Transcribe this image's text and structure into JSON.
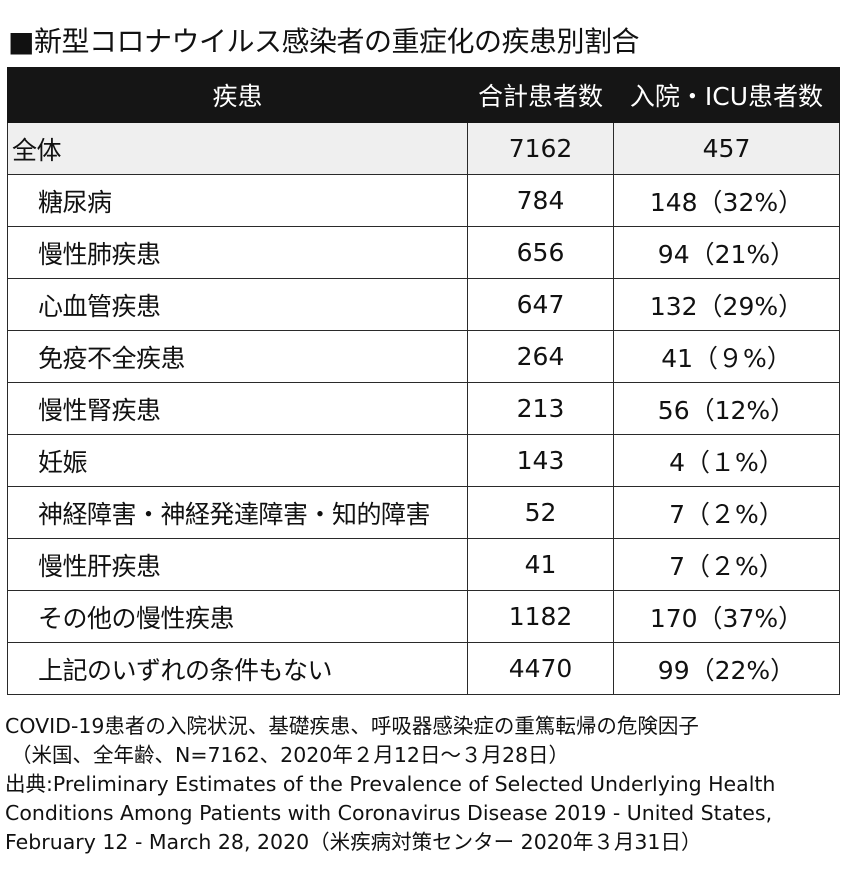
{
  "title": "■新型コロナウイルス感染者の重症化の疾患別割合",
  "table": {
    "headers": [
      "疾患",
      "合計患者数",
      "入院・ICU患者数"
    ],
    "total": {
      "name": "全体",
      "count": "7162",
      "icu": "457"
    },
    "rows": [
      {
        "name": "糖尿病",
        "count": "784",
        "icu": "148（32%）"
      },
      {
        "name": "慢性肺疾患",
        "count": "656",
        "icu": "94（21%）"
      },
      {
        "name": "心血管疾患",
        "count": "647",
        "icu": "132（29%）"
      },
      {
        "name": "免疫不全疾患",
        "count": "264",
        "icu": "41（９%）"
      },
      {
        "name": "慢性腎疾患",
        "count": "213",
        "icu": "56（12%）"
      },
      {
        "name": "妊娠",
        "count": "143",
        "icu": "4（１%）"
      },
      {
        "name": "神経障害・神経発達障害・知的障害",
        "count": "52",
        "icu": "7（２%）"
      },
      {
        "name": "慢性肝疾患",
        "count": "41",
        "icu": "7（２%）"
      },
      {
        "name": "その他の慢性疾患",
        "count": "1182",
        "icu": "170（37%）"
      },
      {
        "name": "上記のいずれの条件もない",
        "count": "4470",
        "icu": "99（22%）"
      }
    ]
  },
  "notes": {
    "caption": "COVID-19患者の入院状況、基礎疾患、呼吸器感染症の重篤転帰の危険因子",
    "scope": "（米国、全年齢、N=7162、2020年２月12日〜３月28日）",
    "source_line1": "出典:Preliminary Estimates of the Prevalence of Selected Underlying Health",
    "source_line2": "Conditions Among Patients with Coronavirus Disease 2019 - United States,",
    "source_line3": "February 12 - March 28, 2020（米疾病対策センター 2020年３月31日）"
  }
}
